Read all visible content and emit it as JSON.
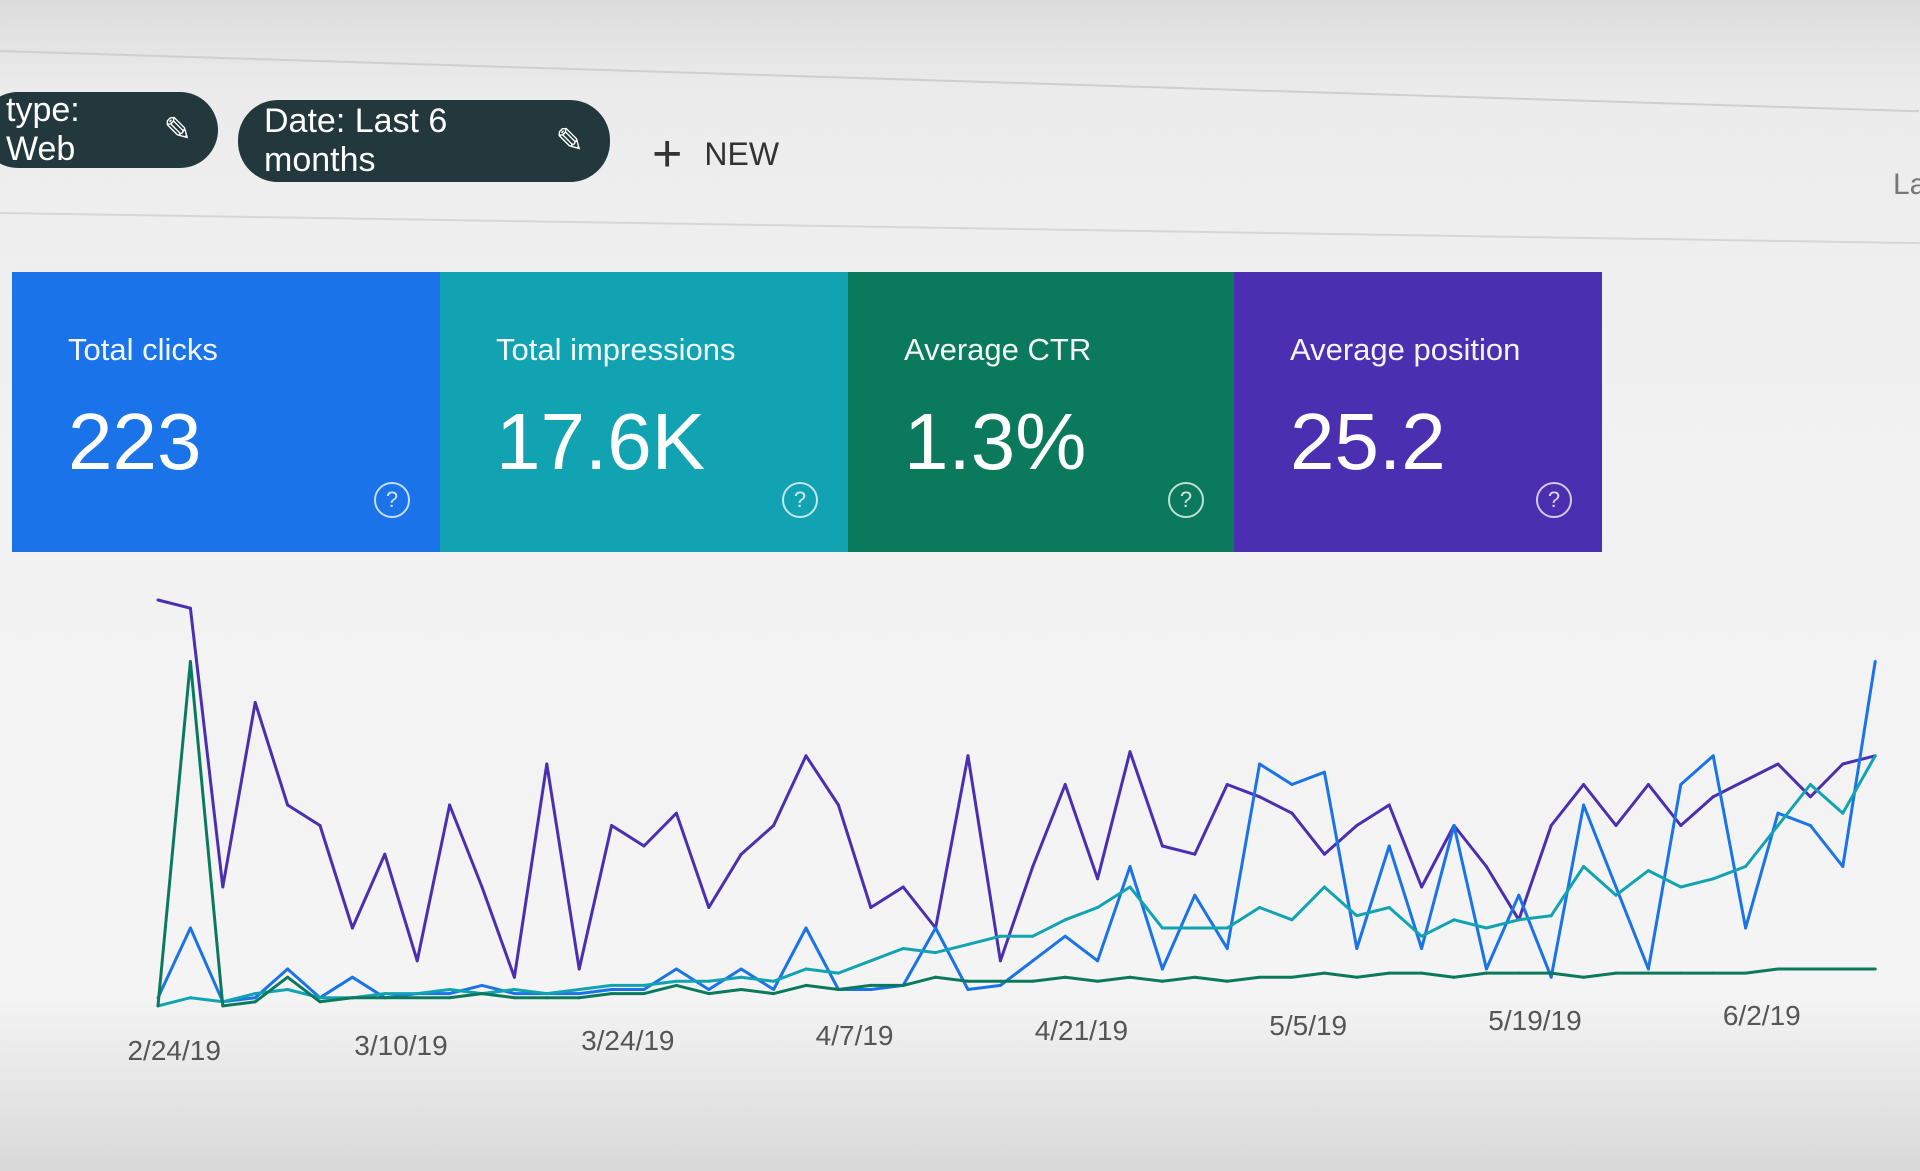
{
  "filters": {
    "type_chip": "type: Web",
    "date_chip": "Date: Last 6 months",
    "edit_icon": "pencil-icon",
    "new_label": "NEW",
    "new_icon": "plus-icon",
    "edge_text": "La"
  },
  "cards": [
    {
      "label": "Total clicks",
      "value": "223",
      "color": "#1a73e8"
    },
    {
      "label": "Total impressions",
      "value": "17.6K",
      "color": "#12a3b2"
    },
    {
      "label": "Average CTR",
      "value": "1.3%",
      "color": "#0b7a5c"
    },
    {
      "label": "Average position",
      "value": "25.2",
      "color": "#4a2fb0"
    }
  ],
  "help_icon": "?",
  "chart_data": {
    "type": "line",
    "title": "",
    "xlabel": "",
    "ylabel": "",
    "grid": false,
    "legend": "none",
    "year": 2019,
    "x_ticks": [
      "2/24/19",
      "3/10/19",
      "3/24/19",
      "4/7/19",
      "4/21/19",
      "5/5/19",
      "5/19/19",
      "6/2/19"
    ],
    "x": [
      "2/23",
      "2/25",
      "2/27",
      "3/1",
      "3/3",
      "3/5",
      "3/7",
      "3/9",
      "3/11",
      "3/13",
      "3/15",
      "3/17",
      "3/19",
      "3/21",
      "3/23",
      "3/25",
      "3/27",
      "3/29",
      "3/31",
      "4/2",
      "4/4",
      "4/6",
      "4/8",
      "4/10",
      "4/12",
      "4/14",
      "4/16",
      "4/18",
      "4/20",
      "4/22",
      "4/24",
      "4/26",
      "4/28",
      "4/30",
      "5/2",
      "5/4",
      "5/6",
      "5/8",
      "5/10",
      "5/12",
      "5/14",
      "5/16",
      "5/18",
      "5/20",
      "5/22",
      "5/24",
      "5/26",
      "5/28",
      "5/30",
      "6/1",
      "6/3",
      "6/5",
      "6/7",
      "6/9"
    ],
    "y_range": [
      0,
      100
    ],
    "series": [
      {
        "color": "#4a2fb0",
        "values": [
          100,
          98,
          30,
          75,
          50,
          45,
          20,
          38,
          12,
          50,
          30,
          8,
          60,
          10,
          45,
          40,
          48,
          25,
          38,
          45,
          62,
          50,
          25,
          30,
          20,
          62,
          12,
          35,
          55,
          32,
          63,
          40,
          38,
          55,
          52,
          48,
          38,
          45,
          50,
          30,
          45,
          35,
          22,
          45,
          55,
          45,
          55,
          45,
          52,
          56,
          60,
          52,
          60,
          62
        ]
      },
      {
        "color": "#1a73e8",
        "values": [
          3,
          20,
          2,
          3,
          10,
          3,
          8,
          3,
          4,
          4,
          6,
          4,
          4,
          4,
          5,
          5,
          10,
          5,
          10,
          5,
          20,
          5,
          5,
          6,
          20,
          5,
          6,
          12,
          18,
          12,
          35,
          10,
          28,
          15,
          60,
          55,
          58,
          15,
          40,
          15,
          45,
          10,
          28,
          8,
          50,
          30,
          10,
          55,
          62,
          20,
          48,
          45,
          35,
          85
        ]
      },
      {
        "color": "#12a3b2",
        "values": [
          1,
          3,
          2,
          4,
          5,
          3,
          3,
          4,
          4,
          5,
          4,
          5,
          4,
          5,
          6,
          6,
          7,
          7,
          8,
          7,
          10,
          9,
          12,
          15,
          14,
          16,
          18,
          18,
          22,
          25,
          30,
          20,
          20,
          20,
          25,
          22,
          30,
          23,
          25,
          18,
          22,
          20,
          22,
          23,
          35,
          28,
          34,
          30,
          32,
          35,
          45,
          55,
          48,
          62
        ]
      },
      {
        "color": "#0b7a5c",
        "values": [
          1,
          85,
          1,
          2,
          8,
          2,
          3,
          3,
          3,
          3,
          4,
          3,
          3,
          3,
          4,
          4,
          6,
          4,
          5,
          4,
          6,
          5,
          6,
          6,
          8,
          7,
          7,
          7,
          8,
          7,
          8,
          7,
          8,
          7,
          8,
          8,
          9,
          8,
          9,
          9,
          8,
          9,
          9,
          9,
          8,
          9,
          9,
          9,
          9,
          9,
          10,
          10,
          10,
          10
        ]
      }
    ]
  }
}
